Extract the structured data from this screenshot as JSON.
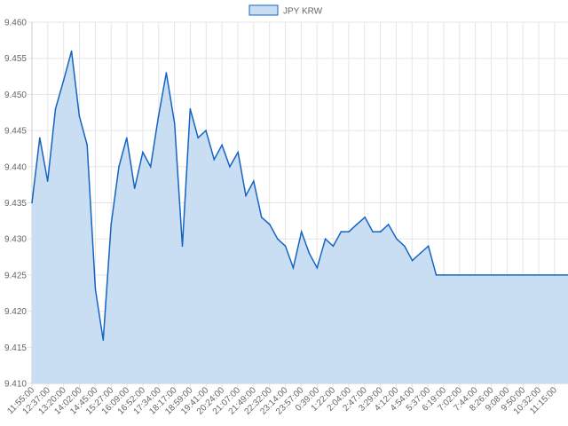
{
  "chart_data": {
    "type": "area",
    "title": "",
    "xlabel": "",
    "ylabel": "",
    "legend": {
      "position": "top-center",
      "entries": [
        "JPY KRW"
      ]
    },
    "series": [
      {
        "name": "JPY KRW",
        "color": "#1565c0",
        "fill": "#c9ddf3"
      }
    ],
    "grid": true,
    "ylim": [
      9.41,
      9.46
    ],
    "yticks": [
      "9.460",
      "9.455",
      "9.450",
      "9.445",
      "9.440",
      "9.435",
      "9.430",
      "9.425",
      "9.420",
      "9.415",
      "9.410"
    ],
    "xticks": [
      "11:55:00",
      "12:37:00",
      "13:20:00",
      "14:02:00",
      "14:45:00",
      "15:27:00",
      "16:09:00",
      "16:52:00",
      "17:34:00",
      "18:17:00",
      "18:59:00",
      "19:41:00",
      "20:24:00",
      "21:07:00",
      "21:49:00",
      "22:32:00",
      "23:14:00",
      "23:57:00",
      "0:39:00",
      "1:22:00",
      "2:04:00",
      "2:47:00",
      "3:29:00",
      "4:12:00",
      "4:54:00",
      "5:37:00",
      "6:19:00",
      "7:02:00",
      "7:44:00",
      "8:26:00",
      "9:08:00",
      "9:50:00",
      "10:32:00",
      "11:15:00"
    ],
    "x_points": [
      "11:55:00",
      "12:16:00",
      "12:37:00",
      "12:58:00",
      "13:20:00",
      "13:41:00",
      "14:02:00",
      "14:23:00",
      "14:45:00",
      "15:06:00",
      "15:27:00",
      "15:48:00",
      "16:09:00",
      "16:30:00",
      "16:52:00",
      "17:13:00",
      "17:34:00",
      "17:55:00",
      "18:17:00",
      "18:38:00",
      "18:59:00",
      "19:20:00",
      "19:41:00",
      "20:03:00",
      "20:24:00",
      "20:45:00",
      "21:07:00",
      "21:28:00",
      "21:49:00",
      "22:10:00",
      "22:32:00",
      "22:53:00",
      "23:14:00",
      "23:35:00",
      "23:57:00",
      "0:18:00",
      "0:39:00",
      "1:01:00",
      "1:22:00",
      "1:43:00",
      "2:04:00",
      "2:25:00",
      "2:47:00",
      "3:08:00",
      "3:29:00",
      "3:50:00",
      "4:12:00",
      "4:33:00",
      "4:54:00",
      "5:15:00",
      "5:37:00",
      "5:58:00",
      "6:19:00",
      "11:15:00"
    ],
    "values": [
      9.435,
      9.444,
      9.438,
      9.448,
      9.452,
      9.456,
      9.447,
      9.443,
      9.423,
      9.416,
      9.432,
      9.44,
      9.444,
      9.437,
      9.442,
      9.44,
      9.447,
      9.453,
      9.446,
      9.429,
      9.448,
      9.444,
      9.445,
      9.441,
      9.443,
      9.44,
      9.442,
      9.436,
      9.438,
      9.433,
      9.432,
      9.43,
      9.429,
      9.426,
      9.431,
      9.428,
      9.426,
      9.43,
      9.429,
      9.431,
      9.431,
      9.432,
      9.433,
      9.431,
      9.431,
      9.432,
      9.43,
      9.429,
      9.427,
      9.428,
      9.429,
      9.425,
      9.425,
      9.425
    ]
  }
}
